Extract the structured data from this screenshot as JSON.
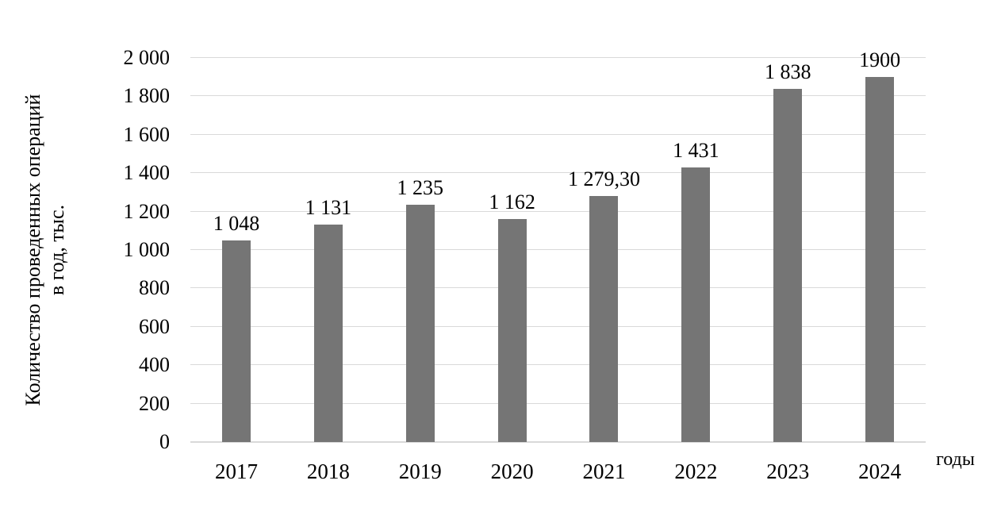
{
  "chart_data": {
    "type": "bar",
    "title": "",
    "categories": [
      "2017",
      "2018",
      "2019",
      "2020",
      "2021",
      "2022",
      "2023",
      "2024"
    ],
    "values": [
      1048,
      1131,
      1235,
      1162,
      1279.3,
      1431,
      1838,
      1900
    ],
    "value_labels": [
      "1 048",
      "1 131",
      "1 235",
      "1 162",
      "1 279,30",
      "1 431",
      "1 838",
      "1900"
    ],
    "ylabel_line1": "Количество проведенных операций",
    "ylabel_line2": "в год, тыс.",
    "xlabel": "годы",
    "ylim": [
      0,
      2000
    ],
    "ytick_step": 200,
    "ytick_labels": [
      "0",
      "200",
      "400",
      "600",
      "800",
      "1 000",
      "1 200",
      "1 400",
      "1 600",
      "1 800",
      "2 000"
    ],
    "grid": true,
    "legend": "none",
    "colors": {
      "bar": "#757575",
      "gridline": "#d9d9d9",
      "axis_line": "#d9d9d9",
      "text": "#000000",
      "background": "#ffffff"
    }
  }
}
